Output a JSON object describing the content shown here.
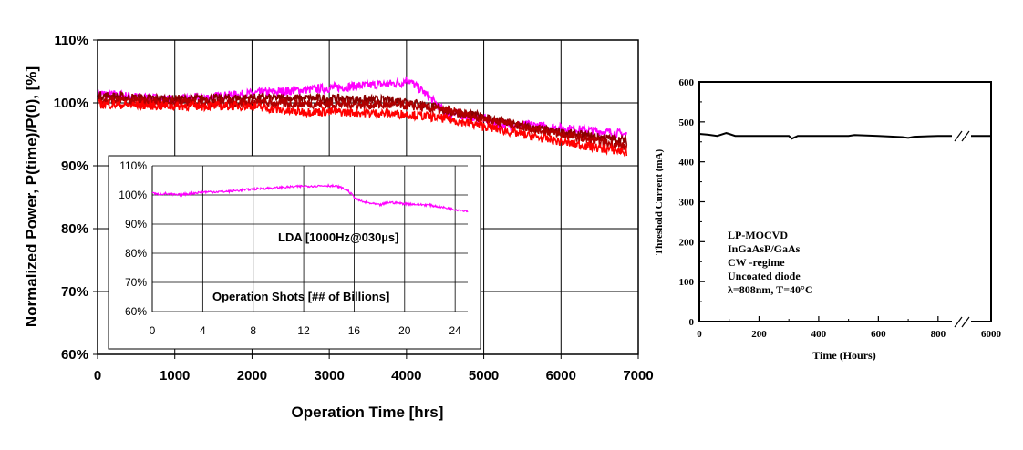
{
  "chart_data": [
    {
      "type": "line",
      "xlabel": "Operation Time [hrs]",
      "ylabel": "Normalized Power, P(time)/P(0), [%]",
      "xlim": [
        0,
        7000
      ],
      "ylim": [
        60,
        110
      ],
      "x_ticks": [
        "0",
        "1000",
        "2000",
        "3000",
        "4000",
        "5000",
        "6000",
        "7000"
      ],
      "y_ticks": [
        "60%",
        "70%",
        "80%",
        "90%",
        "100%",
        "110%"
      ],
      "grid": true,
      "colors": [
        "#ff00ff",
        "#8b0000",
        "#b00000",
        "#ff0000"
      ],
      "series": [
        {
          "color": "#ff00ff",
          "x": [
            0,
            1000,
            2000,
            2800,
            3500,
            3950,
            4000,
            4200,
            4500,
            5000,
            5200,
            5600,
            6000,
            6500,
            6850
          ],
          "y": [
            101.5,
            100.5,
            101.5,
            102.2,
            102.8,
            103.2,
            103.8,
            102.0,
            98.5,
            97.5,
            96.5,
            96.5,
            96.0,
            95.5,
            95.0
          ]
        },
        {
          "color": "#8b0000",
          "x": [
            0,
            500,
            1000,
            2000,
            3000,
            3500,
            4000,
            4300,
            4700,
            5000,
            5300,
            5600,
            6000,
            6500,
            6850
          ],
          "y": [
            101.2,
            100.8,
            100.6,
            100.8,
            100.7,
            100.5,
            100.3,
            99.5,
            98.3,
            97.8,
            96.8,
            96.0,
            95.3,
            94.5,
            94.0
          ]
        },
        {
          "color": "#b00000",
          "x": [
            0,
            1000,
            2000,
            3000,
            4000,
            4500,
            5000,
            5500,
            6000,
            6500,
            6850
          ],
          "y": [
            100.5,
            100.1,
            100.0,
            99.8,
            99.6,
            98.8,
            97.5,
            96.3,
            95.0,
            93.8,
            93.0
          ]
        },
        {
          "color": "#ff0000",
          "x": [
            0,
            1000,
            2000,
            2500,
            3000,
            4000,
            4500,
            5000,
            5500,
            6000,
            6500,
            6850
          ],
          "y": [
            99.8,
            99.5,
            99.5,
            98.6,
            98.6,
            98.2,
            97.5,
            96.3,
            95.0,
            93.8,
            92.8,
            92.2
          ]
        }
      ]
    },
    {
      "type": "line",
      "annotation": "LDA [1000Hz@030µs]",
      "xlabel": "Operation Shots [## of Billions]",
      "xlim": [
        0,
        25
      ],
      "ylim": [
        60,
        110
      ],
      "x_ticks": [
        0,
        4,
        8,
        12,
        16,
        20,
        24
      ],
      "y_ticks": [
        "60%",
        "70%",
        "80%",
        "90%",
        "100%",
        "110%"
      ],
      "grid": true,
      "series": [
        {
          "color": "#ff00ff",
          "x": [
            0,
            0.3,
            1,
            2,
            4,
            6,
            8,
            10,
            12,
            14,
            14.8,
            15.5,
            16.2,
            16.8,
            17.5,
            18,
            18.8,
            20,
            22,
            24,
            25
          ],
          "y": [
            101,
            100.2,
            100.5,
            100,
            101,
            101.2,
            102,
            102.5,
            103,
            103.2,
            102.8,
            101.5,
            98.5,
            97.5,
            97,
            96.5,
            97.5,
            97,
            96.5,
            95,
            94.5
          ]
        }
      ]
    },
    {
      "type": "line",
      "xlabel": "Time (Hours)",
      "ylabel": "Threshold Current (mA)",
      "xlim": [
        0,
        6000
      ],
      "ylim": [
        0,
        600
      ],
      "x_ticks": [
        "0",
        "200",
        "400",
        "600",
        "800",
        "6000"
      ],
      "y_ticks": [
        "0",
        "100",
        "200",
        "300",
        "400",
        "500",
        "600"
      ],
      "axis_break": true,
      "annotation": [
        "LP-MOCVD",
        "InGaAsP/GaAs",
        "CW -regime",
        "Uncoated diode",
        "λ=808nm, T=40°C"
      ],
      "series": [
        {
          "color": "#000000",
          "x": [
            0,
            30,
            60,
            90,
            100,
            120,
            200,
            300,
            310,
            330,
            400,
            500,
            520,
            600,
            680,
            700,
            720,
            800,
            880,
            6000
          ],
          "y": [
            470,
            468,
            465,
            472,
            470,
            465,
            465,
            465,
            458,
            465,
            465,
            465,
            467,
            465,
            462,
            460,
            463,
            465,
            465,
            465
          ]
        }
      ]
    }
  ]
}
